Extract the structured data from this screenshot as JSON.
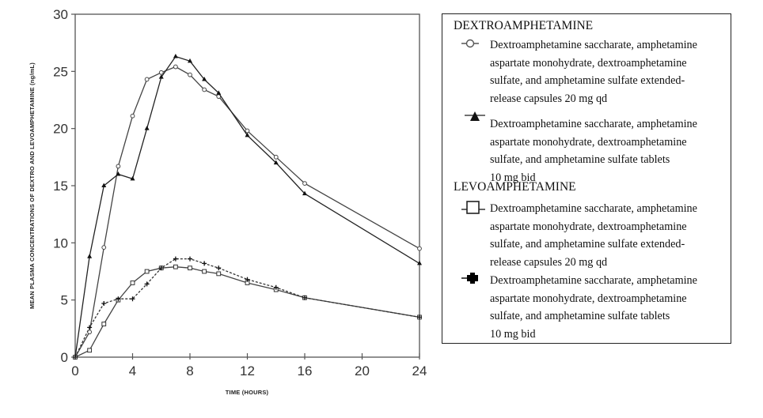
{
  "chart_data": {
    "type": "line",
    "title": "",
    "xlabel": "TIME (HOURS)",
    "ylabel": "MEAN PLASMA CONCENTRATIONS OF DEXTRO AND LEVOAMPHETAMINE (ng/mL)",
    "xlim": [
      0,
      24
    ],
    "ylim": [
      0,
      30
    ],
    "xticks": [
      0,
      4,
      8,
      12,
      16,
      20,
      24
    ],
    "yticks": [
      0,
      5,
      10,
      15,
      20,
      25,
      30
    ],
    "grid": false,
    "legend_position": "right",
    "x": [
      0,
      1,
      2,
      3,
      4,
      5,
      6,
      7,
      8,
      9,
      10,
      12,
      14,
      16,
      24
    ],
    "series": [
      {
        "name": "Dextroamphetamine saccharate, amphetamine aspartate monohydrate, dextroamphetamine sulfate, and amphetamine sulfate extended-release capsules 20 mg qd",
        "group": "DEXTROAMPHETAMINE",
        "marker": "open-circle",
        "line": "solid",
        "color": "#444444",
        "values": [
          0,
          2.2,
          9.6,
          16.7,
          21.1,
          24.3,
          24.9,
          25.4,
          24.7,
          23.4,
          22.8,
          19.8,
          17.5,
          15.2,
          9.5
        ]
      },
      {
        "name": "Dextroamphetamine saccharate, amphetamine aspartate monohydrate, dextroamphetamine sulfate, and amphetamine sulfate tablets 10 mg bid",
        "group": "DEXTROAMPHETAMINE",
        "marker": "filled-triangle",
        "line": "solid",
        "color": "#222222",
        "values": [
          0,
          8.8,
          15.0,
          16.0,
          15.6,
          20.0,
          24.5,
          26.3,
          25.9,
          24.3,
          23.1,
          19.4,
          17.0,
          14.3,
          8.2
        ]
      },
      {
        "name": "Dextroamphetamine saccharate, amphetamine aspartate monohydrate, dextroamphetamine sulfate, and amphetamine sulfate extended-release capsules 20 mg qd",
        "group": "LEVOAMPHETAMINE",
        "marker": "open-square",
        "line": "solid",
        "color": "#444444",
        "values": [
          0,
          0.6,
          2.9,
          5.0,
          6.5,
          7.5,
          7.8,
          7.9,
          7.8,
          7.5,
          7.3,
          6.5,
          5.9,
          5.2,
          3.5
        ]
      },
      {
        "name": "Dextroamphetamine saccharate, amphetamine aspartate monohydrate, dextroamphetamine sulfate, and amphetamine sulfate tablets 10 mg bid",
        "group": "LEVOAMPHETAMINE",
        "marker": "filled-plus",
        "line": "dashed",
        "color": "#333333",
        "values": [
          0,
          2.6,
          4.7,
          5.1,
          5.1,
          6.4,
          7.8,
          8.6,
          8.6,
          8.2,
          7.8,
          6.8,
          6.1,
          5.2,
          3.5
        ]
      }
    ]
  },
  "legend": {
    "groups": [
      {
        "title": "DEXTROAMPHETAMINE",
        "items": [
          {
            "marker": "open-circle-icon",
            "lines": [
              "Dextroamphetamine saccharate, amphetamine",
              "aspartate monohydrate, dextroamphetamine",
              "sulfate, and amphetamine sulfate extended-",
              "release capsules 20 mg qd"
            ]
          },
          {
            "marker": "filled-triangle-icon",
            "lines": [
              "Dextroamphetamine saccharate, amphetamine",
              "aspartate monohydrate, dextroamphetamine",
              "sulfate, and amphetamine sulfate tablets",
              "10 mg bid"
            ]
          }
        ]
      },
      {
        "title": "LEVOAMPHETAMINE",
        "items": [
          {
            "marker": "open-square-icon",
            "lines": [
              "Dextroamphetamine saccharate, amphetamine",
              "aspartate monohydrate, dextroamphetamine",
              "sulfate, and amphetamine sulfate extended-",
              "release capsules 20 mg qd"
            ]
          },
          {
            "marker": "filled-plus-icon",
            "lines": [
              "Dextroamphetamine saccharate, amphetamine",
              "aspartate monohydrate, dextroamphetamine",
              "sulfate, and amphetamine sulfate tablets",
              "10 mg bid"
            ]
          }
        ]
      }
    ]
  }
}
